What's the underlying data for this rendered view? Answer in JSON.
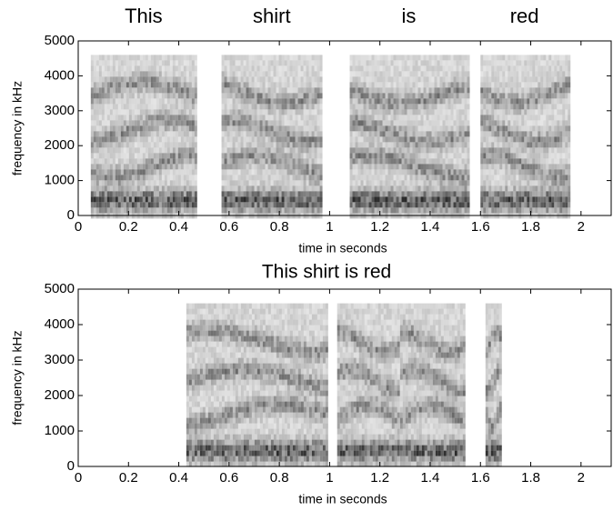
{
  "chart_data": [
    {
      "type": "spectrogram",
      "xlabel": "time in seconds",
      "ylabel": "frequency in kHz",
      "xlim": [
        0,
        2.12
      ],
      "ylim": [
        0,
        5000
      ],
      "xticks": [
        0,
        0.2,
        0.4,
        0.6,
        0.8,
        1,
        1.2,
        1.4,
        1.6,
        1.8,
        2
      ],
      "yticks": [
        0,
        1000,
        2000,
        3000,
        4000,
        5000
      ],
      "segments": [
        {
          "label": "This",
          "start": 0.05,
          "end": 0.47
        },
        {
          "label": "shirt",
          "start": 0.57,
          "end": 0.97
        },
        {
          "label": "is",
          "start": 1.08,
          "end": 1.55
        },
        {
          "label": "red",
          "start": 1.6,
          "end": 1.95
        }
      ]
    },
    {
      "type": "spectrogram",
      "title": "This shirt is red",
      "xlabel": "time in seconds",
      "ylabel": "frequency in kHz",
      "xlim": [
        0,
        2.12
      ],
      "ylim": [
        0,
        5000
      ],
      "xticks": [
        0,
        0.2,
        0.4,
        0.6,
        0.8,
        1,
        1.2,
        1.4,
        1.6,
        1.8,
        2
      ],
      "yticks": [
        0,
        1000,
        2000,
        3000,
        4000,
        5000
      ],
      "segments": [
        {
          "start": 0.43,
          "end": 0.99
        },
        {
          "start": 1.03,
          "end": 1.27
        },
        {
          "start": 1.28,
          "end": 1.53
        },
        {
          "start": 1.62,
          "end": 1.68
        }
      ]
    }
  ]
}
